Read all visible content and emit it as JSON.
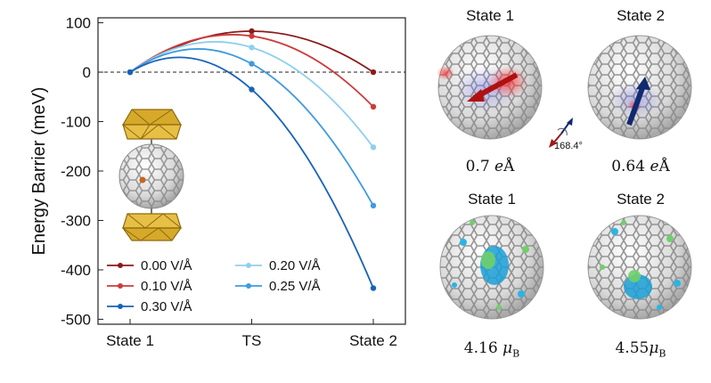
{
  "chart_data": {
    "type": "line",
    "xlabel": "",
    "ylabel": "Energy Barrier (meV)",
    "categories": [
      "State 1",
      "TS",
      "State 2"
    ],
    "ylim": [
      -510,
      110
    ],
    "yticks": [
      100,
      0,
      -100,
      -200,
      -300,
      -400,
      -500
    ],
    "reference_line": 0,
    "legend_position": "bottom-left",
    "series": [
      {
        "name": "0.00 V/Å",
        "color": "#8b1a1a",
        "values": [
          0,
          83,
          0
        ]
      },
      {
        "name": "0.10 V/Å",
        "color": "#cc3b3b",
        "values": [
          0,
          73,
          -70
        ]
      },
      {
        "name": "0.20 V/Å",
        "color": "#8fd0ec",
        "values": [
          0,
          50,
          -152
        ]
      },
      {
        "name": "0.25 V/Å",
        "color": "#3d9be0",
        "values": [
          0,
          17,
          -270
        ]
      },
      {
        "name": "0.30 V/Å",
        "color": "#1763b8",
        "values": [
          0,
          -35,
          -437
        ]
      }
    ],
    "ticklabels": {
      "y": [
        "100",
        "0",
        "-100",
        "-200",
        "-300",
        "-400",
        "-500"
      ]
    }
  },
  "panels": {
    "top_left": {
      "title": "State 1",
      "value_num": "0.7",
      "value_unit_italic": "e",
      "value_unit": "Å"
    },
    "top_right": {
      "title": "State 2",
      "value_num": "0.64",
      "value_unit_italic": "e",
      "value_unit": "Å"
    },
    "bottom_left": {
      "title": "State 1",
      "value_num": "4.16",
      "value_unit_italic": "μ",
      "value_unit_sub": "B"
    },
    "bottom_right": {
      "title": "State 2",
      "value_num": "4.55",
      "value_unit_italic": "μ",
      "value_unit_sub": "B"
    },
    "angle": "168.4°"
  }
}
